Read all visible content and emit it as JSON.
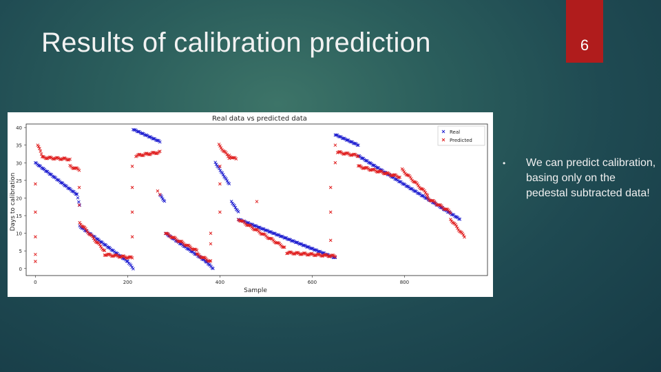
{
  "slide": {
    "title": "Results of calibration prediction",
    "slide_number": "6",
    "accent_color": "#b01c1c",
    "bullets": [
      {
        "marker": "•",
        "text": "We can predict calibration, basing only on the pedestal subtracted data!"
      }
    ]
  },
  "chart_data": {
    "type": "scatter",
    "title": "Real data vs predicted data",
    "xlabel": "Sample",
    "ylabel": "Days to calibration",
    "xlim": [
      -20,
      980
    ],
    "ylim": [
      -2,
      41
    ],
    "xticks": [
      0,
      200,
      400,
      600,
      800
    ],
    "yticks": [
      0,
      5,
      10,
      15,
      20,
      25,
      30,
      35,
      40
    ],
    "grid": false,
    "legend_position": "top-right",
    "marker": "x",
    "series": [
      {
        "name": "Real",
        "color": "#1f1fd0",
        "segments": [
          {
            "x_start": 0,
            "x_end": 90,
            "y_start": 30,
            "y_end": 21
          },
          {
            "x_start": 90,
            "x_end": 96,
            "y_start": 21,
            "y_end": 18
          },
          {
            "x_start": 96,
            "x_end": 200,
            "y_start": 12,
            "y_end": 2
          },
          {
            "x_start": 200,
            "x_end": 212,
            "y_start": 2,
            "y_end": 0
          },
          {
            "x_start": 212,
            "x_end": 270,
            "y_start": 39.5,
            "y_end": 36
          },
          {
            "x_start": 270,
            "x_end": 280,
            "y_start": 21,
            "y_end": 19
          },
          {
            "x_start": 282,
            "x_end": 370,
            "y_start": 10,
            "y_end": 2
          },
          {
            "x_start": 370,
            "x_end": 385,
            "y_start": 2,
            "y_end": 0
          },
          {
            "x_start": 390,
            "x_end": 420,
            "y_start": 30,
            "y_end": 24
          },
          {
            "x_start": 425,
            "x_end": 440,
            "y_start": 19,
            "y_end": 16
          },
          {
            "x_start": 440,
            "x_end": 650,
            "y_start": 14,
            "y_end": 3
          },
          {
            "x_start": 650,
            "x_end": 700,
            "y_start": 38,
            "y_end": 35
          },
          {
            "x_start": 700,
            "x_end": 920,
            "y_start": 32,
            "y_end": 14
          }
        ]
      },
      {
        "name": "Predicted",
        "color": "#e02020",
        "segments": [
          {
            "x_start": 5,
            "x_end": 15,
            "y_start": 35,
            "y_end": 32
          },
          {
            "x_start": 15,
            "x_end": 75,
            "y_start": 31.5,
            "y_end": 31
          },
          {
            "x_start": 75,
            "x_end": 95,
            "y_start": 29,
            "y_end": 28
          },
          {
            "x_start": 96,
            "x_end": 150,
            "y_start": 13,
            "y_end": 5
          },
          {
            "x_start": 150,
            "x_end": 210,
            "y_start": 4,
            "y_end": 3
          },
          {
            "x_start": 218,
            "x_end": 270,
            "y_start": 32,
            "y_end": 33
          },
          {
            "x_start": 282,
            "x_end": 350,
            "y_start": 10,
            "y_end": 5
          },
          {
            "x_start": 350,
            "x_end": 380,
            "y_start": 4,
            "y_end": 2
          },
          {
            "x_start": 398,
            "x_end": 420,
            "y_start": 35,
            "y_end": 31.5
          },
          {
            "x_start": 420,
            "x_end": 435,
            "y_start": 32,
            "y_end": 31
          },
          {
            "x_start": 440,
            "x_end": 540,
            "y_start": 14,
            "y_end": 6
          },
          {
            "x_start": 545,
            "x_end": 650,
            "y_start": 4.5,
            "y_end": 3.5
          },
          {
            "x_start": 655,
            "x_end": 700,
            "y_start": 33,
            "y_end": 32
          },
          {
            "x_start": 700,
            "x_end": 790,
            "y_start": 29,
            "y_end": 26
          },
          {
            "x_start": 795,
            "x_end": 850,
            "y_start": 28,
            "y_end": 21
          },
          {
            "x_start": 850,
            "x_end": 900,
            "y_start": 20,
            "y_end": 16
          },
          {
            "x_start": 900,
            "x_end": 930,
            "y_start": 14,
            "y_end": 9
          }
        ],
        "outliers": [
          [
            0,
            24
          ],
          [
            0,
            16
          ],
          [
            0,
            9
          ],
          [
            0,
            4
          ],
          [
            0,
            2
          ],
          [
            95,
            23
          ],
          [
            95,
            18
          ],
          [
            210,
            29
          ],
          [
            210,
            23
          ],
          [
            210,
            16
          ],
          [
            210,
            9
          ],
          [
            265,
            22
          ],
          [
            270,
            21
          ],
          [
            380,
            10
          ],
          [
            380,
            7
          ],
          [
            400,
            29
          ],
          [
            400,
            24
          ],
          [
            400,
            16
          ],
          [
            480,
            19
          ],
          [
            640,
            23
          ],
          [
            640,
            16
          ],
          [
            640,
            8
          ],
          [
            650,
            35
          ],
          [
            650,
            30
          ]
        ]
      }
    ]
  }
}
